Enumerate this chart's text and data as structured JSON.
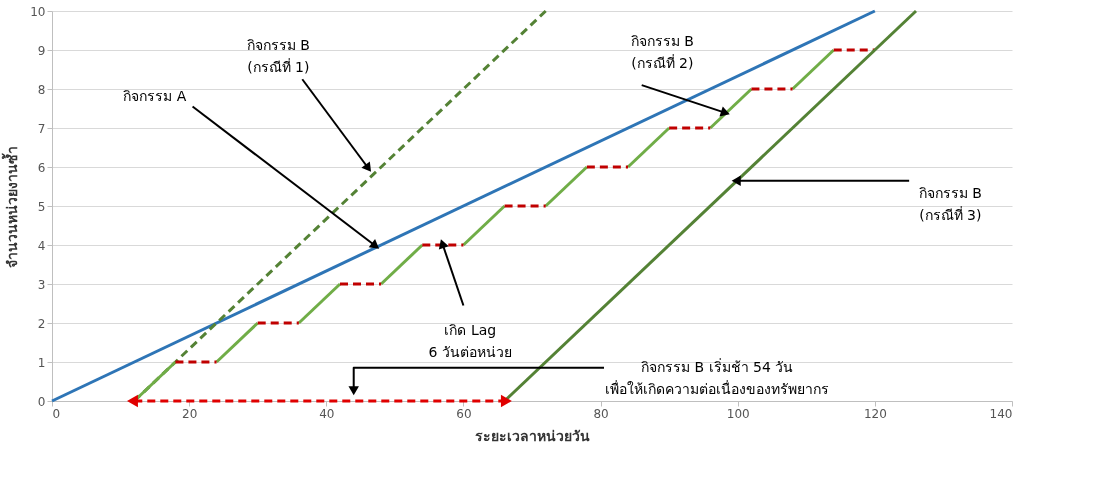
{
  "chart_data": {
    "type": "line",
    "xlabel": "ระยะเวลาหน่วยวัน",
    "ylabel": "จำนวนหน่วยงานซ้ำ",
    "xlim": [
      0,
      140
    ],
    "xticks": [
      0,
      20,
      40,
      60,
      80,
      100,
      120,
      140
    ],
    "ylim": [
      0,
      10
    ],
    "yticks": [
      0,
      1,
      2,
      3,
      4,
      5,
      6,
      7,
      8,
      9,
      10
    ],
    "grid": "y",
    "series": [
      {
        "color": "#2e75b6",
        "x": [
          0,
          120
        ],
        "values": [
          0,
          10
        ]
      },
      {
        "color": "#548235",
        "line_style": "dashed",
        "x": [
          12,
          72
        ],
        "values": [
          0,
          10
        ]
      },
      {
        "color": "#70ad47",
        "x": [
          12,
          18,
          null,
          24,
          30,
          null,
          36,
          42,
          null,
          48,
          54,
          null,
          60,
          66,
          null,
          72,
          78,
          null,
          84,
          90,
          null,
          96,
          102,
          null,
          108,
          114
        ],
        "values": [
          0,
          1,
          null,
          1,
          2,
          null,
          2,
          3,
          null,
          3,
          4,
          null,
          4,
          5,
          null,
          5,
          6,
          null,
          6,
          7,
          null,
          7,
          8,
          null,
          8,
          9
        ]
      },
      {
        "color": "#c00000",
        "line_style": "dashed",
        "x": [
          18,
          24,
          null,
          30,
          36,
          null,
          42,
          48,
          null,
          54,
          60,
          null,
          66,
          72,
          null,
          78,
          84,
          null,
          90,
          96,
          null,
          102,
          108,
          null,
          114,
          120
        ],
        "values": [
          1,
          1,
          null,
          2,
          2,
          null,
          3,
          3,
          null,
          4,
          4,
          null,
          5,
          5,
          null,
          6,
          6,
          null,
          7,
          7,
          null,
          8,
          8,
          null,
          9,
          9
        ]
      },
      {
        "color": "#548235",
        "x": [
          66,
          126
        ],
        "values": [
          0,
          10
        ]
      },
      {
        "color": "#e00000",
        "line_style": "dashed",
        "marker": "triangle",
        "x": [
          12,
          66
        ],
        "values": [
          0,
          0
        ]
      }
    ],
    "annotations": [
      {
        "text": "กิจกรรม B\n(กรณีที่ 1)",
        "x": 46,
        "y": 6
      },
      {
        "text": "กิจกรรม A",
        "x": 47,
        "y": 4
      },
      {
        "text": "กิจกรรม B\n(กรณีที่ 2)",
        "x": 98,
        "y": 7.4
      },
      {
        "text": "กิจกรรม B\n(กรณีที่ 3)",
        "x": 100,
        "y": 5.65
      },
      {
        "text": "เกิด Lag\n6 วันต่อหน่วย",
        "x": 57,
        "y": 4
      },
      {
        "text": "กิจกรรม B เริ่มช้า 54 วัน\nเพื่อให้เกิดความต่อเนื่องของทรัพยากร",
        "x": 44,
        "y": 0.3
      }
    ]
  }
}
